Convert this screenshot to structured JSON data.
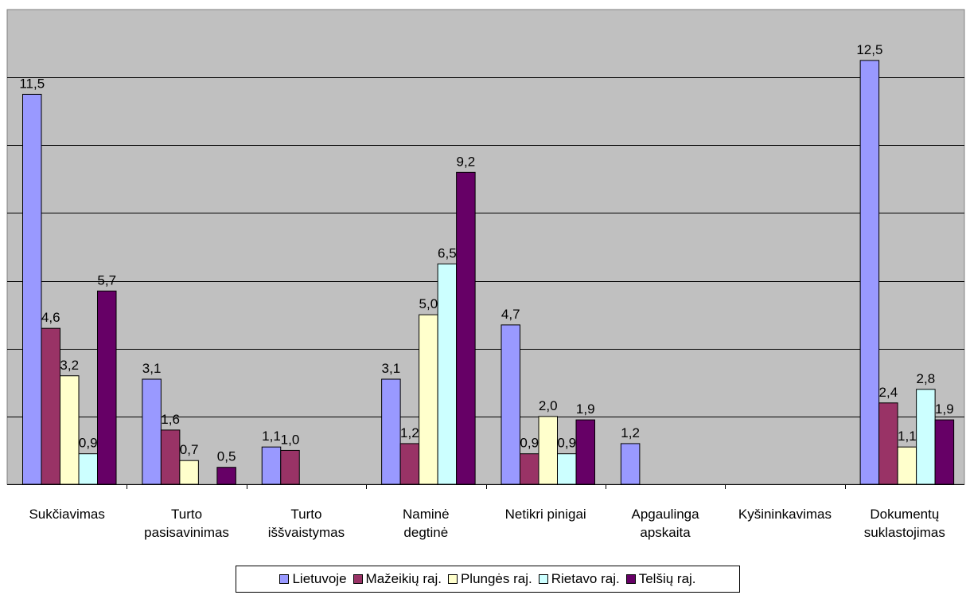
{
  "chart_data": {
    "type": "bar",
    "title": "",
    "xlabel": "",
    "ylabel": "",
    "ylim": [
      0,
      14
    ],
    "grid": true,
    "legend_position": "bottom",
    "plot_background": "#c0c0c0",
    "categories": [
      [
        "Sukčiavimas"
      ],
      [
        "Turto",
        "pasisavinimas"
      ],
      [
        "Turto",
        "iššvaistymas"
      ],
      [
        "Naminė",
        "degtinė"
      ],
      [
        "Netikri pinigai"
      ],
      [
        "Apgaulinga",
        "apskaita"
      ],
      [
        "Kyšininkavimas"
      ],
      [
        "Dokumentų",
        "suklastojimas"
      ]
    ],
    "series": [
      {
        "name": "Lietuvoje",
        "color": "#9999ff",
        "values": [
          11.5,
          3.1,
          1.1,
          3.1,
          4.7,
          1.2,
          null,
          12.5
        ],
        "labels": [
          "11,5",
          "3,1",
          "1,1",
          "3,1",
          "4,7",
          "1,2",
          null,
          "12,5"
        ]
      },
      {
        "name": "Mažeikių raj.",
        "color": "#993366",
        "values": [
          4.6,
          1.6,
          1.0,
          1.2,
          0.9,
          null,
          null,
          2.4
        ],
        "labels": [
          "4,6",
          "1,6",
          "1,0",
          "1,2",
          "0,9",
          null,
          null,
          "2,4"
        ]
      },
      {
        "name": "Plungės raj.",
        "color": "#ffffcc",
        "values": [
          3.2,
          0.7,
          null,
          5.0,
          2.0,
          null,
          null,
          1.1
        ],
        "labels": [
          "3,2",
          "0,7",
          null,
          "5,0",
          "2,0",
          null,
          null,
          "1,1"
        ]
      },
      {
        "name": "Rietavo raj.",
        "color": "#ccffff",
        "values": [
          0.9,
          null,
          null,
          6.5,
          0.9,
          null,
          null,
          2.8
        ],
        "labels": [
          "0,9",
          null,
          null,
          "6,5",
          "0,9",
          null,
          null,
          "2,8"
        ]
      },
      {
        "name": "Telšių raj.",
        "color": "#660066",
        "values": [
          5.7,
          0.5,
          null,
          9.2,
          1.9,
          null,
          null,
          1.9
        ],
        "labels": [
          "5,7",
          "0,5",
          null,
          "9,2",
          "1,9",
          null,
          null,
          "1,9"
        ]
      }
    ]
  }
}
